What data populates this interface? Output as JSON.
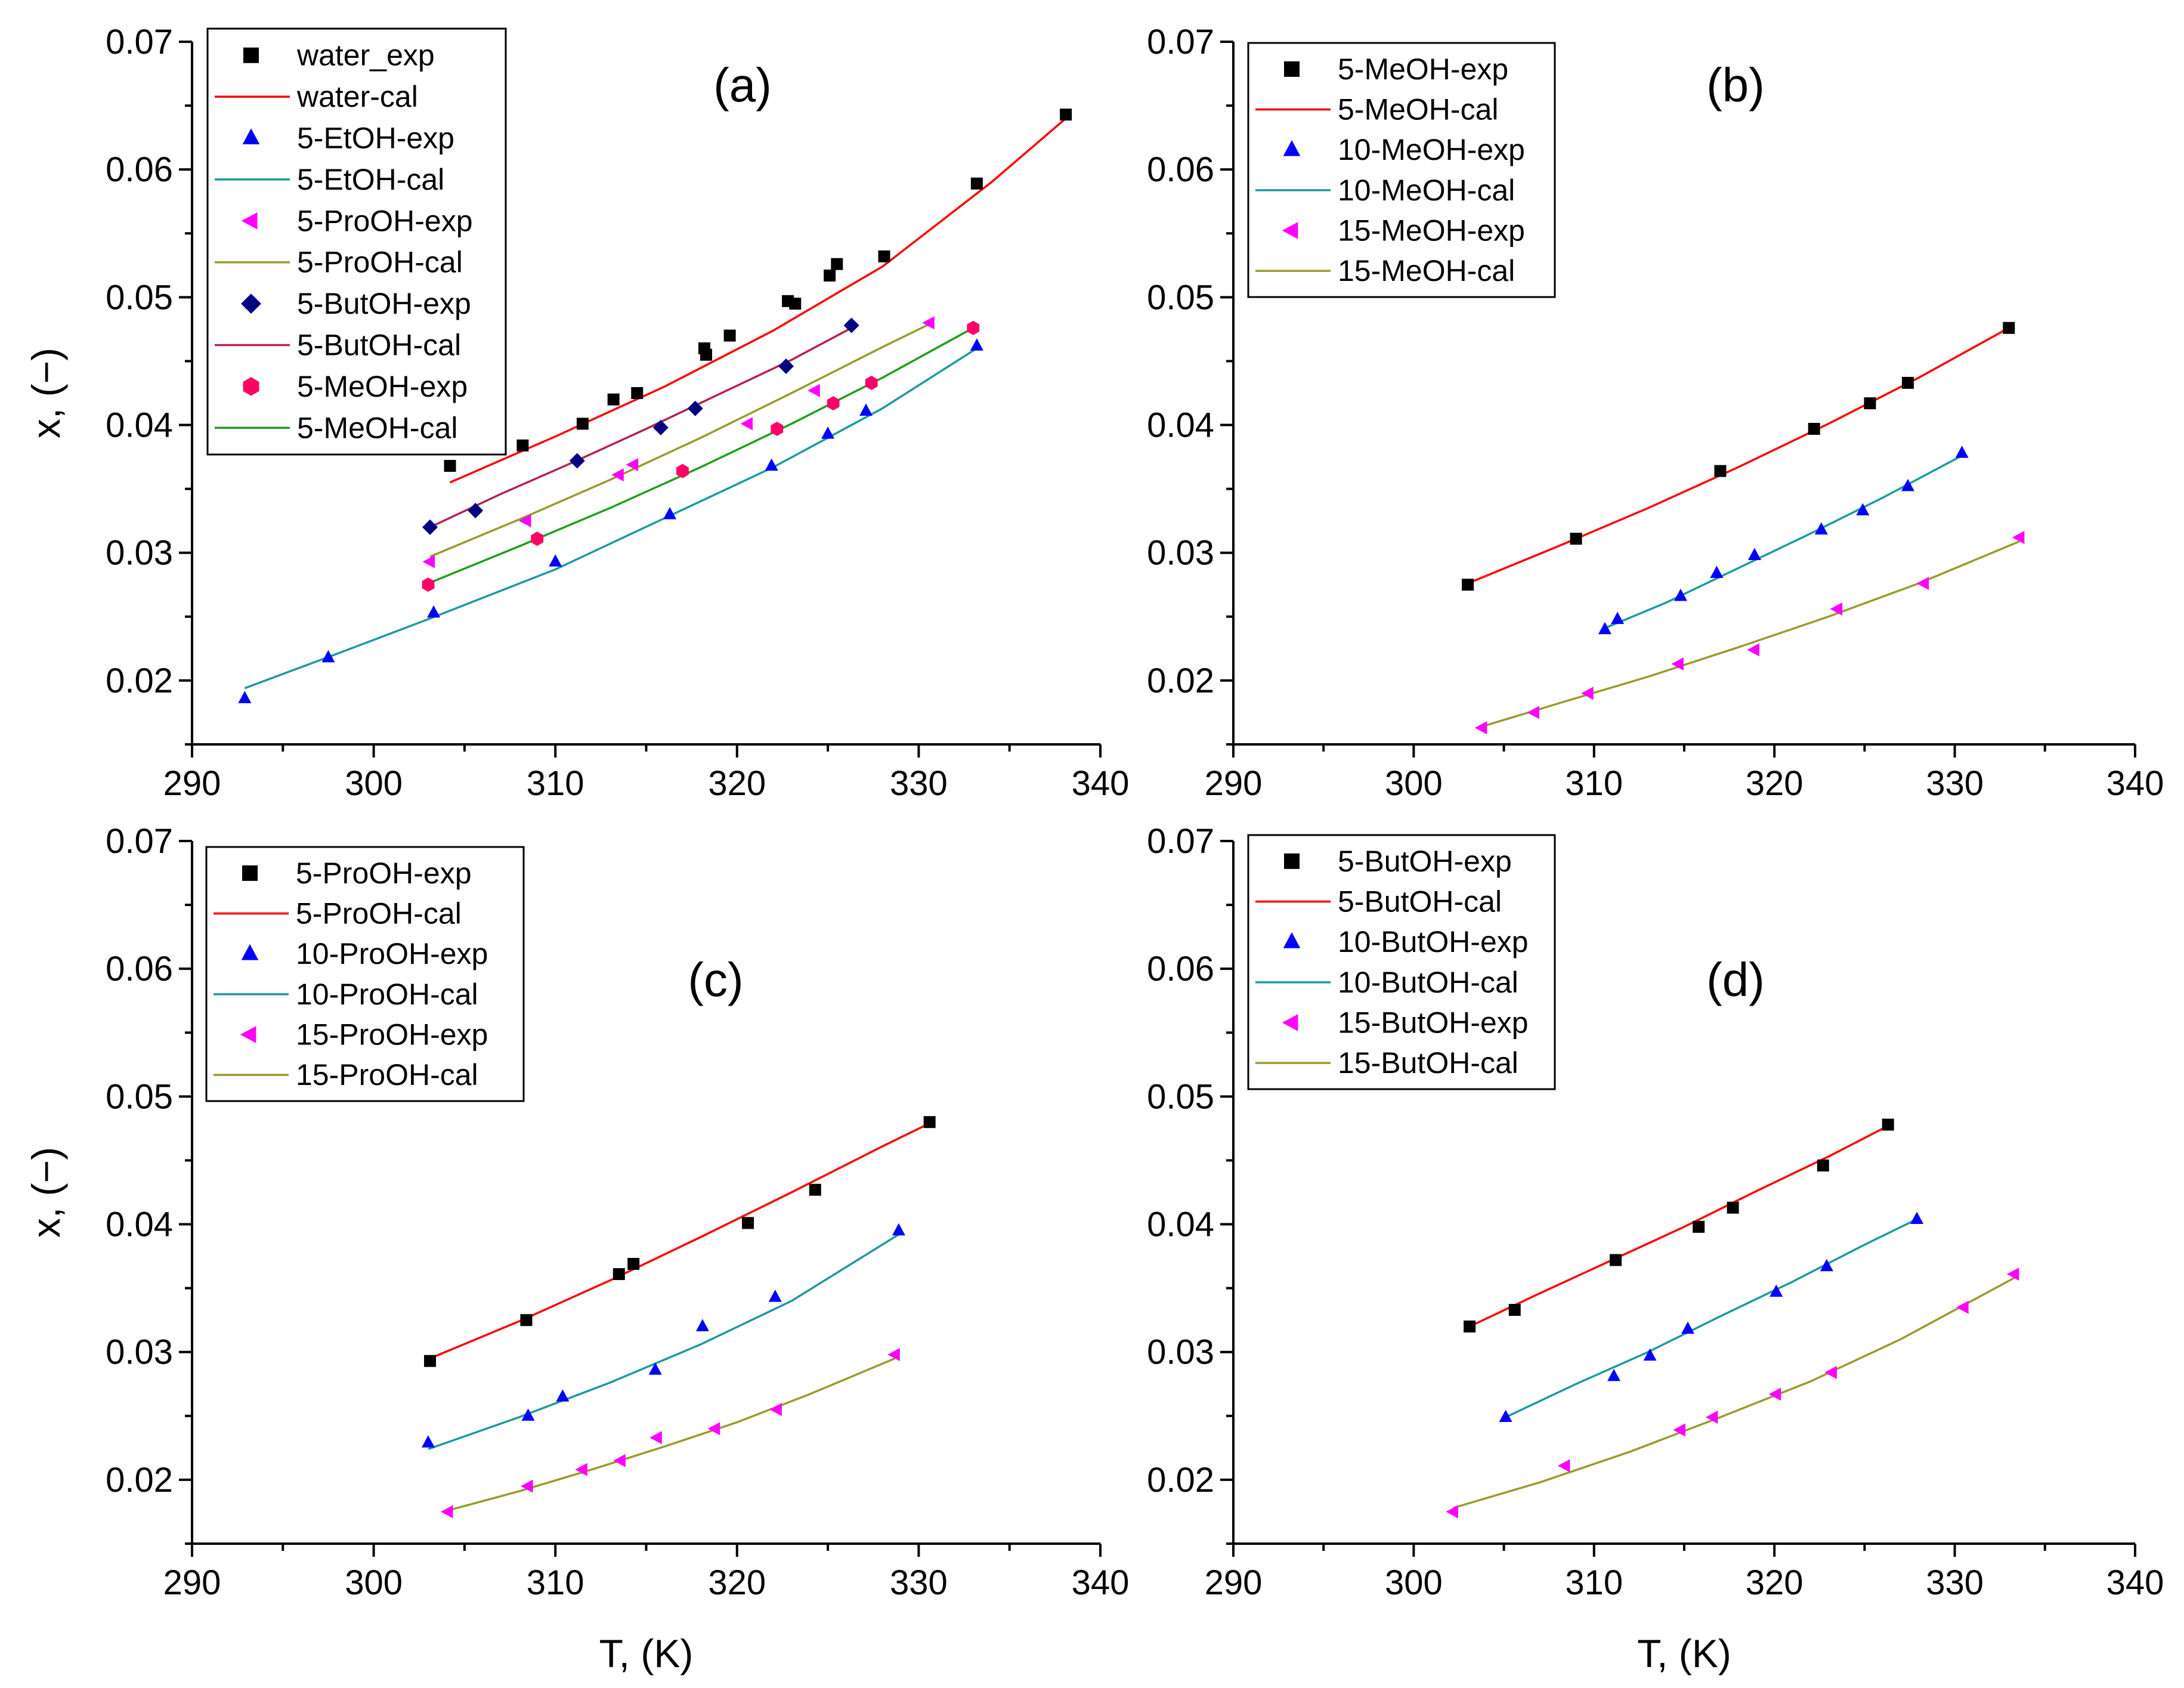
{
  "figure": {
    "x_axis_title": "T, (K)",
    "y_axis_title": "x, (−)",
    "xlim": [
      290,
      340
    ],
    "ylim": [
      0.015,
      0.07
    ]
  },
  "chart_data": [
    {
      "type": "scatter",
      "panel": "(a)",
      "xlabel": "",
      "ylabel": "x, (−)",
      "xlim": [
        290,
        340
      ],
      "ylim": [
        0.015,
        0.07
      ],
      "x_ticks": [
        "290",
        "300",
        "310",
        "320",
        "330",
        "340"
      ],
      "y_ticks": [
        "0.02",
        "0.03",
        "0.04",
        "0.05",
        "0.06",
        "0.07"
      ],
      "legend_position": "top-left",
      "series": [
        {
          "name": "water_exp",
          "fit_name": "water-cal",
          "marker": "square",
          "color": "#000000",
          "line_color": "#ff0000",
          "x": [
            304.2,
            308.2,
            311.5,
            313.2,
            314.5,
            318.2,
            318.3,
            319.6,
            322.8,
            323.2,
            325.1,
            325.5,
            328.1,
            333.2,
            338.1
          ],
          "y": [
            0.0368,
            0.0384,
            0.0401,
            0.042,
            0.0425,
            0.046,
            0.0455,
            0.047,
            0.0497,
            0.0495,
            0.0517,
            0.0526,
            0.0532,
            0.0589,
            0.0643
          ],
          "fit_x": [
            304.2,
            310,
            316,
            322,
            328,
            334,
            338.1
          ],
          "fit_y": [
            0.0355,
            0.0391,
            0.043,
            0.0474,
            0.0524,
            0.059,
            0.064
          ]
        },
        {
          "name": "5-EtOH-exp",
          "fit_name": "5-EtOH-cal",
          "marker": "triangle-up",
          "color": "#0000ff",
          "line_color": "#1d9a9e",
          "x": [
            292.9,
            297.5,
            303.3,
            310.0,
            316.3,
            321.9,
            325.0,
            327.1,
            333.2
          ],
          "y": [
            0.0186,
            0.0218,
            0.0253,
            0.0293,
            0.033,
            0.0368,
            0.0393,
            0.0411,
            0.0462
          ],
          "fit_x": [
            292.9,
            298,
            303,
            310,
            316,
            322,
            328,
            333.2
          ],
          "fit_y": [
            0.0194,
            0.0221,
            0.0248,
            0.0287,
            0.0327,
            0.0367,
            0.0413,
            0.046
          ]
        },
        {
          "name": "5-ProOH-exp",
          "fit_name": "5-ProOH-cal",
          "marker": "triangle-left",
          "color": "#ff00ff",
          "line_color": "#9b9b2c",
          "x": [
            303.1,
            308.4,
            313.5,
            314.3,
            320.6,
            324.3,
            330.6
          ],
          "y": [
            0.0293,
            0.0325,
            0.0361,
            0.0369,
            0.0401,
            0.0427,
            0.048
          ],
          "fit_x": [
            303.1,
            308,
            313,
            318,
            323,
            328,
            330.6
          ],
          "fit_y": [
            0.0297,
            0.0326,
            0.0357,
            0.039,
            0.0425,
            0.0461,
            0.0479
          ]
        },
        {
          "name": "5-ButOH-exp",
          "fit_name": "5-ButOH-cal",
          "marker": "diamond",
          "color": "#000080",
          "line_color": "#b5224d",
          "x": [
            303.1,
            305.6,
            311.2,
            315.8,
            317.7,
            322.7,
            326.3
          ],
          "y": [
            0.032,
            0.0333,
            0.0372,
            0.0398,
            0.0413,
            0.0446,
            0.0478
          ],
          "fit_x": [
            303.1,
            307,
            311,
            315,
            319,
            323,
            326.3
          ],
          "fit_y": [
            0.032,
            0.0346,
            0.0371,
            0.0397,
            0.0424,
            0.0451,
            0.0476
          ]
        },
        {
          "name": "5-MeOH-exp",
          "fit_name": "5-MeOH-cal",
          "marker": "hexagon",
          "color": "#ff0066",
          "line_color": "#1e9e1e",
          "x": [
            303.0,
            309.0,
            317.0,
            322.2,
            325.3,
            327.4,
            333.0
          ],
          "y": [
            0.0275,
            0.0311,
            0.0364,
            0.0397,
            0.0417,
            0.0433,
            0.0476
          ],
          "fit_x": [
            303.0,
            308,
            313,
            318,
            323,
            328,
            333.0
          ],
          "fit_y": [
            0.0276,
            0.0305,
            0.0335,
            0.0367,
            0.0401,
            0.0437,
            0.0476
          ]
        }
      ]
    },
    {
      "type": "scatter",
      "panel": "(b)",
      "xlabel": "",
      "ylabel": "",
      "xlim": [
        290,
        340
      ],
      "ylim": [
        0.015,
        0.07
      ],
      "x_ticks": [
        "290",
        "300",
        "310",
        "320",
        "330",
        "340"
      ],
      "y_ticks": [
        "0.02",
        "0.03",
        "0.04",
        "0.05",
        "0.06",
        "0.07"
      ],
      "legend_position": "top-left",
      "series": [
        {
          "name": "5-MeOH-exp",
          "fit_name": "5-MeOH-cal",
          "marker": "square",
          "color": "#000000",
          "line_color": "#ff0000",
          "x": [
            303.0,
            309.0,
            317.0,
            322.2,
            325.3,
            327.4,
            333.0
          ],
          "y": [
            0.0275,
            0.0311,
            0.0364,
            0.0397,
            0.0417,
            0.0433,
            0.0476
          ],
          "fit_x": [
            303.0,
            308,
            313,
            318,
            323,
            328,
            333.0
          ],
          "fit_y": [
            0.0276,
            0.0305,
            0.0335,
            0.0367,
            0.0401,
            0.0437,
            0.0476
          ]
        },
        {
          "name": "10-MeOH-exp",
          "fit_name": "10-MeOH-cal",
          "marker": "triangle-up",
          "color": "#0000ff",
          "line_color": "#1d9a9e",
          "x": [
            310.6,
            311.3,
            314.8,
            316.8,
            318.9,
            322.6,
            324.9,
            327.4,
            330.4
          ],
          "y": [
            0.024,
            0.0248,
            0.0266,
            0.0284,
            0.0298,
            0.0318,
            0.0333,
            0.0352,
            0.0378
          ],
          "fit_x": [
            310.6,
            314,
            318,
            322,
            326,
            330.4
          ],
          "fit_y": [
            0.0241,
            0.0261,
            0.0288,
            0.0315,
            0.0343,
            0.0376
          ]
        },
        {
          "name": "15-MeOH-exp",
          "fit_name": "15-MeOH-cal",
          "marker": "triangle-left",
          "color": "#ff00ff",
          "line_color": "#9b9b2c",
          "x": [
            303.8,
            306.7,
            309.7,
            314.7,
            318.9,
            323.5,
            328.3,
            333.6
          ],
          "y": [
            0.0163,
            0.0175,
            0.019,
            0.0213,
            0.0224,
            0.0256,
            0.0276,
            0.0312
          ],
          "fit_x": [
            303.8,
            308,
            313,
            318,
            323,
            328,
            333.6
          ],
          "fit_y": [
            0.0164,
            0.0182,
            0.0203,
            0.0226,
            0.025,
            0.0276,
            0.0309
          ]
        }
      ]
    },
    {
      "type": "scatter",
      "panel": "(c)",
      "xlabel": "T, (K)",
      "ylabel": "x, (−)",
      "xlim": [
        290,
        340
      ],
      "ylim": [
        0.015,
        0.07
      ],
      "x_ticks": [
        "290",
        "300",
        "310",
        "320",
        "330",
        "340"
      ],
      "y_ticks": [
        "0.02",
        "0.03",
        "0.04",
        "0.05",
        "0.06",
        "0.07"
      ],
      "legend_position": "top-left",
      "series": [
        {
          "name": "5-ProOH-exp",
          "fit_name": "5-ProOH-cal",
          "marker": "square",
          "color": "#000000",
          "line_color": "#ff0000",
          "x": [
            303.1,
            308.4,
            313.5,
            314.3,
            320.6,
            324.3,
            330.6
          ],
          "y": [
            0.0293,
            0.0325,
            0.0361,
            0.0369,
            0.0401,
            0.0427,
            0.048
          ],
          "fit_x": [
            303.1,
            308,
            313,
            318,
            323,
            328,
            330.6
          ],
          "fit_y": [
            0.0295,
            0.0324,
            0.0356,
            0.039,
            0.0425,
            0.0461,
            0.0479
          ]
        },
        {
          "name": "10-ProOH-exp",
          "fit_name": "10-ProOH-cal",
          "marker": "triangle-up",
          "color": "#0000ff",
          "line_color": "#1d9a9e",
          "x": [
            303.0,
            308.5,
            310.4,
            315.5,
            318.1,
            322.1,
            328.9
          ],
          "y": [
            0.0229,
            0.025,
            0.0265,
            0.0286,
            0.032,
            0.0343,
            0.0395
          ],
          "fit_x": [
            303.0,
            308,
            313,
            318,
            323,
            328.9
          ],
          "fit_y": [
            0.0224,
            0.0249,
            0.0276,
            0.0306,
            0.034,
            0.0392
          ]
        },
        {
          "name": "15-ProOH-exp",
          "fit_name": "15-ProOH-cal",
          "marker": "triangle-left",
          "color": "#ff00ff",
          "line_color": "#9b9b2c",
          "x": [
            304.1,
            308.5,
            311.5,
            313.6,
            315.6,
            318.8,
            322.2,
            328.7
          ],
          "y": [
            0.0175,
            0.0195,
            0.0208,
            0.0215,
            0.0233,
            0.024,
            0.0255,
            0.0298
          ],
          "fit_x": [
            304.1,
            308,
            312,
            316,
            320,
            324,
            328.7
          ],
          "fit_y": [
            0.0176,
            0.0191,
            0.0208,
            0.0226,
            0.0245,
            0.0267,
            0.0295
          ]
        }
      ]
    },
    {
      "type": "scatter",
      "panel": "(d)",
      "xlabel": "T, (K)",
      "ylabel": "",
      "xlim": [
        290,
        340
      ],
      "ylim": [
        0.015,
        0.07
      ],
      "x_ticks": [
        "290",
        "300",
        "310",
        "320",
        "330",
        "340"
      ],
      "y_ticks": [
        "0.02",
        "0.03",
        "0.04",
        "0.05",
        "0.06",
        "0.07"
      ],
      "legend_position": "top-left",
      "series": [
        {
          "name": "5-ButOH-exp",
          "fit_name": "5-ButOH-cal",
          "marker": "square",
          "color": "#000000",
          "line_color": "#ff0000",
          "x": [
            303.1,
            305.6,
            311.2,
            315.8,
            317.7,
            322.7,
            326.3
          ],
          "y": [
            0.032,
            0.0333,
            0.0372,
            0.0398,
            0.0413,
            0.0446,
            0.0478
          ],
          "fit_x": [
            303.1,
            307,
            311,
            315,
            319,
            323,
            326.3
          ],
          "fit_y": [
            0.032,
            0.0346,
            0.0372,
            0.0398,
            0.0426,
            0.0453,
            0.0477
          ]
        },
        {
          "name": "10-ButOH-exp",
          "fit_name": "10-ButOH-cal",
          "marker": "triangle-up",
          "color": "#0000ff",
          "line_color": "#1d9a9e",
          "x": [
            305.1,
            311.1,
            313.1,
            315.2,
            320.1,
            322.9,
            327.9
          ],
          "y": [
            0.0249,
            0.0281,
            0.0297,
            0.0318,
            0.0347,
            0.0367,
            0.0404
          ],
          "fit_x": [
            305.1,
            309,
            313,
            317,
            321,
            325,
            327.9
          ],
          "fit_y": [
            0.0249,
            0.0275,
            0.03,
            0.0328,
            0.0355,
            0.0384,
            0.0404
          ]
        },
        {
          "name": "15-ButOH-exp",
          "fit_name": "15-ButOH-cal",
          "marker": "triangle-left",
          "color": "#ff00ff",
          "line_color": "#9b9b2c",
          "x": [
            302.2,
            308.4,
            314.8,
            316.6,
            320.1,
            323.2,
            330.5,
            333.3
          ],
          "y": [
            0.0175,
            0.0211,
            0.0239,
            0.0249,
            0.0267,
            0.0284,
            0.0335,
            0.0361
          ],
          "fit_x": [
            302.2,
            307,
            312,
            317,
            322,
            327,
            333.3
          ],
          "fit_y": [
            0.0178,
            0.0198,
            0.0222,
            0.0249,
            0.0277,
            0.031,
            0.0358
          ]
        }
      ]
    }
  ]
}
